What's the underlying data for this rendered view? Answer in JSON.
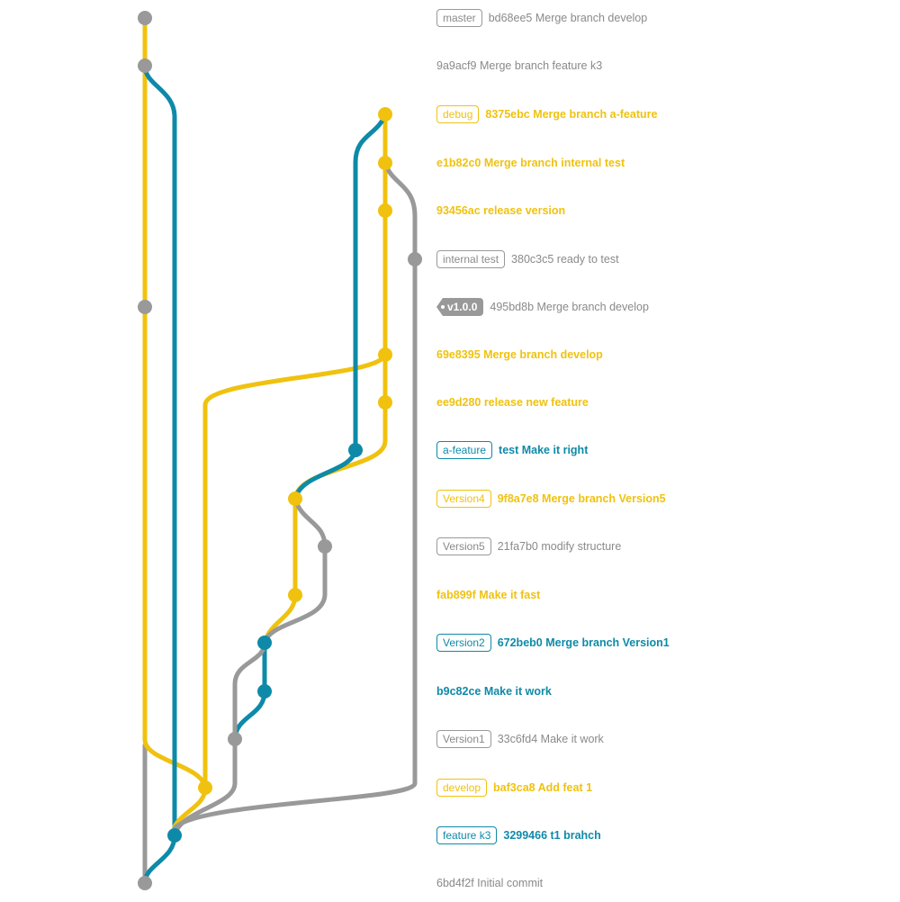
{
  "colors": {
    "grey": "#999999",
    "yellow": "#f0c20f",
    "blue": "#0e8aa8",
    "tag_text": "#ffffff"
  },
  "commits": [
    {
      "tag": "master",
      "tag_type": "branch",
      "text": "bd68ee5 Merge branch develop",
      "color": "grey"
    },
    {
      "tag": "",
      "tag_type": "",
      "text": "9a9acf9 Merge branch feature k3",
      "color": "grey"
    },
    {
      "tag": "debug",
      "tag_type": "branch",
      "text": "8375ebc Merge branch a-feature",
      "color": "yellow"
    },
    {
      "tag": "",
      "tag_type": "",
      "text": "e1b82c0 Merge branch internal test",
      "color": "yellow"
    },
    {
      "tag": "",
      "tag_type": "",
      "text": "93456ac release version",
      "color": "yellow"
    },
    {
      "tag": "internal test",
      "tag_type": "branch",
      "text": "380c3c5 ready to test",
      "color": "grey"
    },
    {
      "tag": "v1.0.0",
      "tag_type": "version",
      "text": "495bd8b Merge branch develop",
      "color": "grey"
    },
    {
      "tag": "",
      "tag_type": "",
      "text": "69e8395 Merge branch develop",
      "color": "yellow"
    },
    {
      "tag": "",
      "tag_type": "",
      "text": "ee9d280 release new feature",
      "color": "yellow"
    },
    {
      "tag": "a-feature",
      "tag_type": "branch",
      "text": "test Make it right",
      "color": "blue"
    },
    {
      "tag": "Version4",
      "tag_type": "branch",
      "text": "9f8a7e8 Merge branch Version5",
      "color": "yellow"
    },
    {
      "tag": "Version5",
      "tag_type": "branch",
      "text": "21fa7b0 modify structure",
      "color": "grey"
    },
    {
      "tag": "",
      "tag_type": "",
      "text": "fab899f Make it fast",
      "color": "yellow"
    },
    {
      "tag": "Version2",
      "tag_type": "branch",
      "text": "672beb0 Merge branch Version1",
      "color": "blue"
    },
    {
      "tag": "",
      "tag_type": "",
      "text": "b9c82ce Make it work",
      "color": "blue"
    },
    {
      "tag": "Version1",
      "tag_type": "branch",
      "text": "33c6fd4 Make it work",
      "color": "grey"
    },
    {
      "tag": "develop",
      "tag_type": "branch",
      "text": "baf3ca8 Add feat 1",
      "color": "yellow"
    },
    {
      "tag": "feature k3",
      "tag_type": "branch",
      "text": "3299466 t1 brahch",
      "color": "blue"
    },
    {
      "tag": "",
      "tag_type": "",
      "text": "6bd4f2f Initial commit",
      "color": "grey"
    }
  ]
}
